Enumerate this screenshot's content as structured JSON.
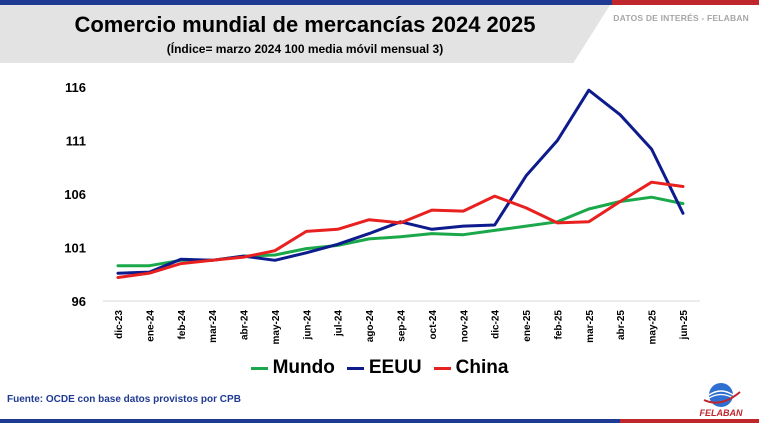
{
  "header": {
    "tag": "DATOS DE INTERÉS - FELABAN"
  },
  "chart_data": {
    "type": "line",
    "title": "Comercio mundial de mercancías 2024 2025",
    "subtitle": "(Índice= marzo 2024 100 media móvil mensual 3)",
    "categories": [
      "dic-23",
      "ene-24",
      "feb-24",
      "mar-24",
      "abr-24",
      "may-24",
      "jun-24",
      "jul-24",
      "ago-24",
      "sep-24",
      "oct-24",
      "nov-24",
      "dic-24",
      "ene-25",
      "feb-25",
      "mar-25",
      "abr-25",
      "may-25",
      "jun-25"
    ],
    "yticks": [
      "116",
      "111",
      "106",
      "101",
      "96"
    ],
    "ylim": [
      96,
      116
    ],
    "grid": false,
    "legend_position": "bottom",
    "series": [
      {
        "name": "Mundo",
        "color": "#1aa84b",
        "values": [
          99.3,
          99.3,
          99.8,
          99.8,
          100.2,
          100.3,
          100.9,
          101.2,
          101.8,
          102.0,
          102.3,
          102.2,
          102.6,
          103.0,
          103.4,
          104.6,
          105.3,
          105.7,
          105.1
        ]
      },
      {
        "name": "EEUU",
        "color": "#0d1b8c",
        "values": [
          98.6,
          98.7,
          99.9,
          99.8,
          100.2,
          99.8,
          100.5,
          101.3,
          102.3,
          103.4,
          102.7,
          103.0,
          103.1,
          107.7,
          111.0,
          115.7,
          113.4,
          110.2,
          104.2
        ]
      },
      {
        "name": "China",
        "color": "#e8201f",
        "values": [
          98.2,
          98.6,
          99.5,
          99.8,
          100.1,
          100.7,
          102.5,
          102.7,
          103.6,
          103.3,
          104.5,
          104.4,
          105.8,
          104.7,
          103.3,
          103.4,
          105.3,
          107.1,
          106.7
        ]
      }
    ]
  },
  "footer": {
    "source": "Fuente: OCDE con base datos provistos por CPB",
    "logo_text": "FELABAN"
  }
}
